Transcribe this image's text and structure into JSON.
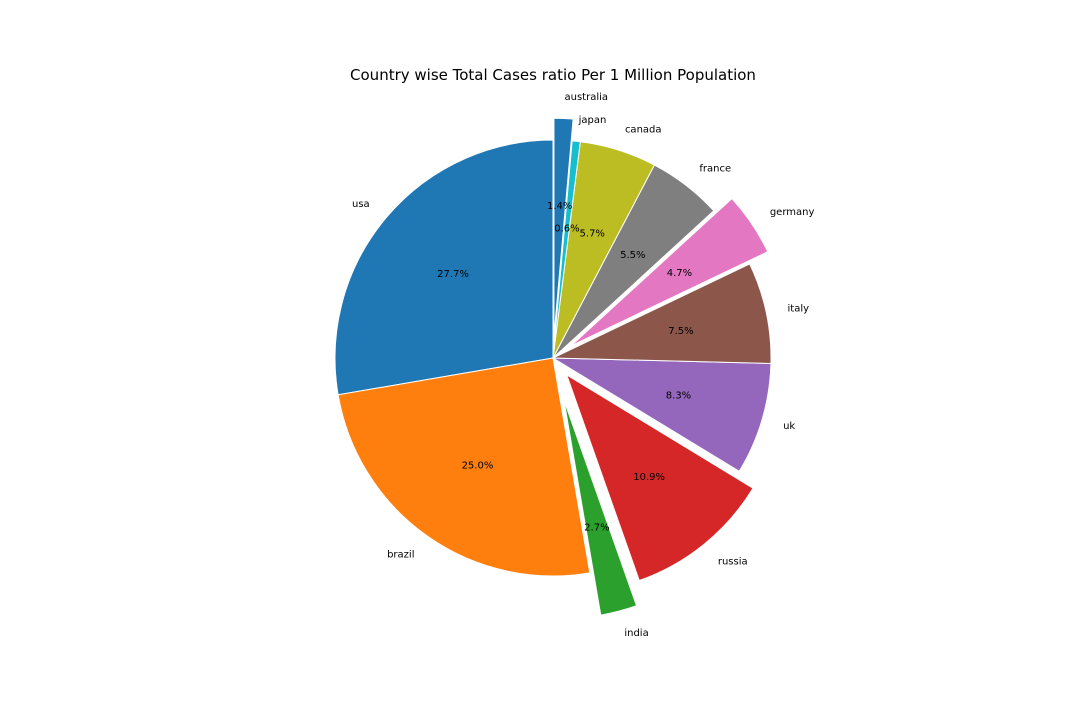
{
  "chart_data": {
    "type": "pie",
    "title": "Country wise Total Cases ratio Per 1 Million Population",
    "start_angle_deg": 90,
    "direction": "counterclockwise",
    "categories": [
      "usa",
      "brazil",
      "india",
      "russia",
      "uk",
      "italy",
      "germany",
      "france",
      "canada",
      "japan",
      "australia"
    ],
    "values": [
      27.7,
      25.0,
      2.7,
      10.9,
      8.3,
      7.5,
      4.7,
      5.5,
      5.7,
      0.6,
      1.4
    ],
    "percent_labels": [
      "27.7%",
      "25.0%",
      "2.7%",
      "10.9%",
      "8.3%",
      "7.5%",
      "4.7%",
      "5.5%",
      "5.7%",
      "0.6%",
      "1.4%"
    ],
    "exploded": [
      0,
      0,
      0.2,
      0.1,
      0,
      0,
      0.1,
      0,
      0,
      0,
      0.1
    ],
    "colors": [
      "#1f77b4",
      "#ff7f0e",
      "#2ca02c",
      "#d62728",
      "#9467bd",
      "#8c564b",
      "#e377c2",
      "#7f7f7f",
      "#bcbd22",
      "#17becf",
      "#1f77b4"
    ],
    "legend": "none"
  }
}
